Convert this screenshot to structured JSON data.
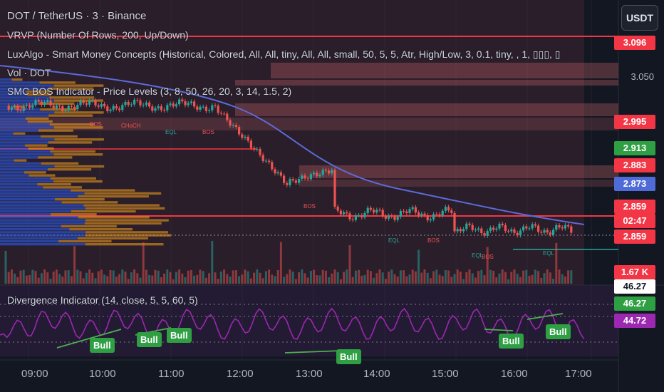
{
  "legend": {
    "symbol": "DOT / TetherUS · 3 · Binance",
    "vrvp": "VRVP (Number Of Rows, 200, Up/Down)",
    "luxalgo": "LuxAlgo - Smart Money Concepts (Historical, Colored, All, All, tiny, All, All, small, 50, 5, 5, Atr, High/Low, 3, 0.1, tiny, , 1, ▯▯▯, ▯",
    "vol": "Vol · DOT",
    "smc": "SMC BOS Indicator - Price Levels (3, 8, 50, 26, 20, 3, 14, 1.5, 2)",
    "divergence": "Divergence Indicator (14, close, 5, 5, 60, 5)"
  },
  "currency_button": "USDT",
  "price_scale": {
    "ticks": [
      "3.050"
    ],
    "tags": [
      {
        "value": "3.096",
        "bg": "#f23645",
        "fg": "#ffffff"
      },
      {
        "value": "2.995",
        "bg": "#f23645",
        "fg": "#ffffff"
      },
      {
        "value": "2.913",
        "bg": "#2ea043",
        "fg": "#ffffff"
      },
      {
        "value": "2.883",
        "bg": "#f23645",
        "fg": "#ffffff"
      },
      {
        "value": "2.873",
        "bg": "#4f6bd8",
        "fg": "#ffffff"
      },
      {
        "value": "2.859",
        "bg": "#f23645",
        "fg": "#ffffff"
      },
      {
        "value": "02:47",
        "bg": "#f23645",
        "fg": "#ffffff"
      },
      {
        "value": "2.859",
        "bg": "#f23645",
        "fg": "#ffffff"
      },
      {
        "value": "1.67 K",
        "bg": "#f23645",
        "fg": "#ffffff"
      }
    ],
    "osc_tags": [
      {
        "value": "46.27",
        "bg": "#ffffff",
        "fg": "#131722"
      },
      {
        "value": "46.27",
        "bg": "#2ea043",
        "fg": "#ffffff"
      },
      {
        "value": "44.72",
        "bg": "#9c27b0",
        "fg": "#ffffff"
      }
    ]
  },
  "time_axis": [
    "09:00",
    "10:00",
    "11:00",
    "12:00",
    "13:00",
    "14:00",
    "15:00",
    "16:00",
    "17:00"
  ],
  "smc_labels": [
    "BOS",
    "BOS",
    "CHoCH",
    "EQL",
    "BOS",
    "BOS",
    "EQL",
    "BOS",
    "EQL",
    "BOS",
    "EQL"
  ],
  "bull_labels": [
    "Bull",
    "Bull",
    "Bull",
    "Bull",
    "Bull",
    "Bull"
  ],
  "colors": {
    "background": "#131722",
    "up": "#26a69a",
    "down": "#ef5350",
    "ma": "#5b6bd8",
    "rsi": "#9c27b0",
    "resistance": "#f23645",
    "zone": "#e57373"
  }
}
